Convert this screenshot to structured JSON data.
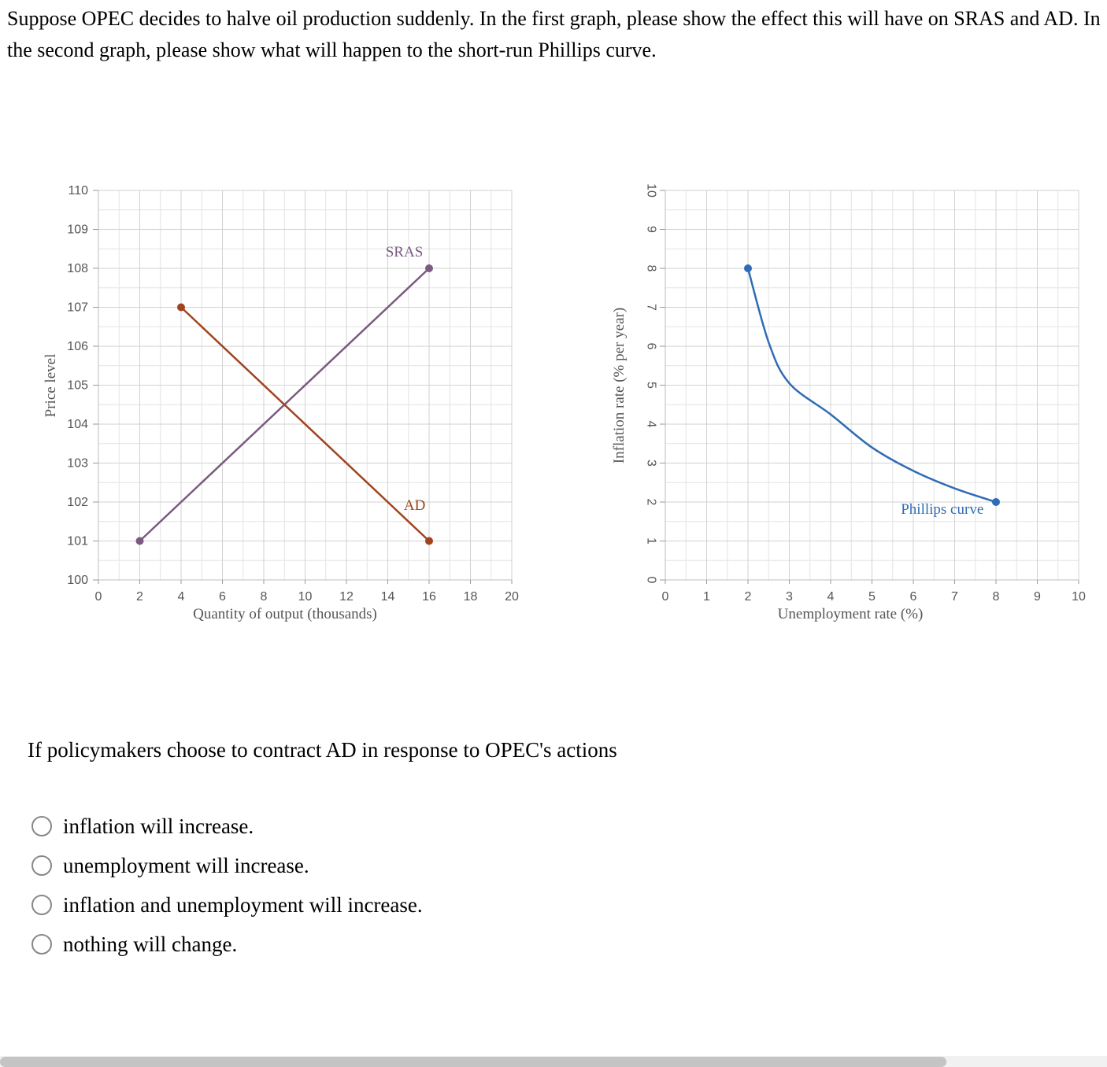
{
  "question": {
    "text": "Suppose OPEC decides to halve oil production suddenly. In the first graph, please show the effect this will have on SRAS and AD. In the second graph, please show what will happen to the short-run Phillips curve."
  },
  "chart_data": [
    {
      "type": "line",
      "xlabel": "Quantity of output (thousands)",
      "ylabel": "Price level",
      "xlim": [
        0,
        20
      ],
      "ylim": [
        100,
        110
      ],
      "x_ticks": [
        0,
        2,
        4,
        6,
        8,
        10,
        12,
        14,
        16,
        18,
        20
      ],
      "y_ticks": [
        100,
        101,
        102,
        103,
        104,
        105,
        106,
        107,
        108,
        109,
        110
      ],
      "grid": true,
      "series": [
        {
          "name": "SRAS",
          "color": "#7b5a80",
          "points": [
            [
              2,
              101
            ],
            [
              16,
              108
            ]
          ],
          "label_at": [
            14.8,
            108.3
          ]
        },
        {
          "name": "AD",
          "color": "#a0441f",
          "points": [
            [
              4,
              107
            ],
            [
              16,
              101
            ]
          ],
          "label_at": [
            15.3,
            101.8
          ]
        }
      ]
    },
    {
      "type": "line",
      "xlabel": "Unemployment rate (%)",
      "ylabel": "Inflation rate (% per year)",
      "xlim": [
        0,
        10
      ],
      "ylim": [
        0,
        10
      ],
      "x_ticks": [
        0,
        1,
        2,
        3,
        4,
        5,
        6,
        7,
        8,
        9,
        10
      ],
      "y_ticks": [
        0,
        1,
        2,
        3,
        4,
        5,
        6,
        7,
        8,
        9,
        10
      ],
      "grid": true,
      "series": [
        {
          "name": "Phillips curve",
          "color": "#2f6cb5",
          "curve": "convex",
          "points": [
            [
              2,
              8
            ],
            [
              2.5,
              6.1
            ],
            [
              3,
              5.05
            ],
            [
              4,
              4.25
            ],
            [
              5,
              3.4
            ],
            [
              6,
              2.8
            ],
            [
              7,
              2.35
            ],
            [
              8,
              2
            ]
          ],
          "endpoints": [
            [
              2,
              8
            ],
            [
              8,
              2
            ]
          ],
          "label_at": [
            6.7,
            1.7
          ]
        }
      ]
    }
  ],
  "prompt": {
    "text": "If policymakers choose to contract AD in response to OPEC's actions"
  },
  "options": [
    "inflation will increase.",
    "unemployment will increase.",
    "inflation and unemployment will increase.",
    "nothing will change."
  ]
}
